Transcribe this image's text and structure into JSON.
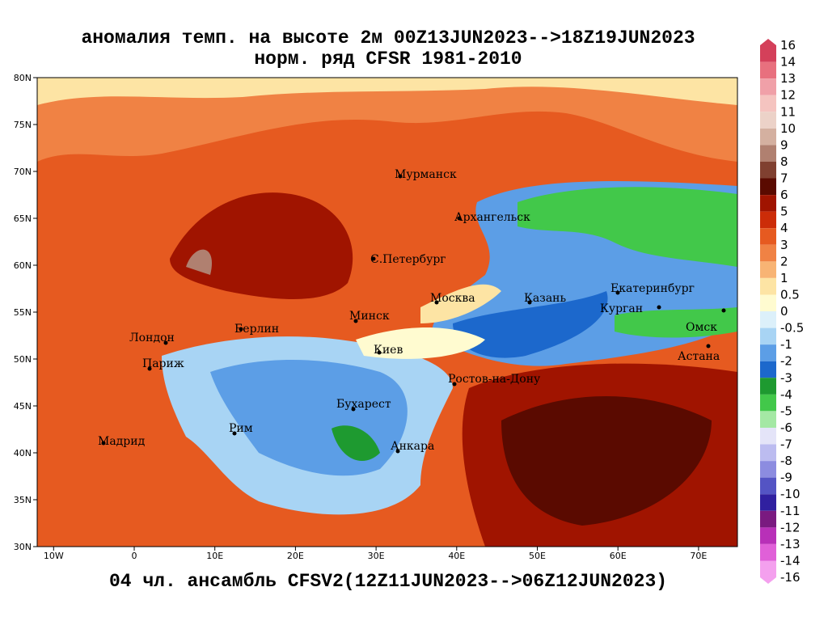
{
  "title": "аномалия темп. на высоте 2м 00Z13JUN2023-->18Z19JUN2023",
  "subtitle": "норм. ряд CFSR 1981-2010",
  "caption": "04 чл. ансамбль CFSV2(12Z11JUN2023-->06Z12JUN2023)",
  "lon_ticks": [
    {
      "value": -10,
      "label": "10W"
    },
    0,
    {
      "value": 10,
      "label": "10E"
    },
    {
      "value": 20,
      "label": "20E"
    },
    {
      "value": 30,
      "label": "30E"
    },
    {
      "value": 40,
      "label": "40E"
    },
    {
      "value": 50,
      "label": "50E"
    },
    {
      "value": 60,
      "label": "60E"
    },
    {
      "value": 70,
      "label": "70E"
    }
  ],
  "lat_ticks": [
    {
      "value": 80,
      "label": "80N"
    },
    {
      "value": 75,
      "label": "75N"
    },
    {
      "value": 70,
      "label": "70N"
    },
    {
      "value": 65,
      "label": "65N"
    },
    {
      "value": 60,
      "label": "60N"
    },
    {
      "value": 55,
      "label": "55N"
    },
    {
      "value": 50,
      "label": "50N"
    },
    {
      "value": 45,
      "label": "45N"
    },
    {
      "value": 40,
      "label": "40N"
    },
    {
      "value": 35,
      "label": "35N"
    },
    {
      "value": 30,
      "label": "30N"
    }
  ],
  "cities": [
    "Мурманск",
    "Архангельск",
    "С.Петербург",
    "Москва",
    "Казань",
    "Екатеринбург",
    "Курган",
    "Омск",
    "Астана",
    "Минск",
    "Берлин",
    "Лондон",
    "Париж",
    "Киев",
    "Ростов-на-Дону",
    "Бухарест",
    "Рим",
    "Мадрид",
    "Анкара"
  ],
  "colorbar": {
    "levels": [
      16,
      14,
      13,
      12,
      11,
      10,
      9,
      8,
      7,
      6,
      5,
      4,
      3,
      2,
      1,
      0.5,
      0,
      -0.5,
      -1,
      -2,
      -3,
      -4,
      -5,
      -6,
      -7,
      -8,
      -9,
      -10,
      -11,
      -12,
      -13,
      -14,
      -16
    ],
    "colors": [
      "#d4405a",
      "#e8707e",
      "#f0a0a8",
      "#f5c4c0",
      "#ecd2c8",
      "#d4b0a0",
      "#b08070",
      "#804030",
      "#5a0a00",
      "#a01400",
      "#cc2c08",
      "#e65a20",
      "#f08244",
      "#f8b474",
      "#fde4a4",
      "#fffbd0",
      "#dcf0fa",
      "#a8d4f4",
      "#5c9ee6",
      "#1c68cc",
      "#1e9a30",
      "#42c84a",
      "#a4e8a4",
      "#e4e4f8",
      "#bcbcf0",
      "#8c8ce0",
      "#5454c4",
      "#3020a0",
      "#7a1a80",
      "#b830b8",
      "#e060d8",
      "#f4a0ee"
    ]
  }
}
